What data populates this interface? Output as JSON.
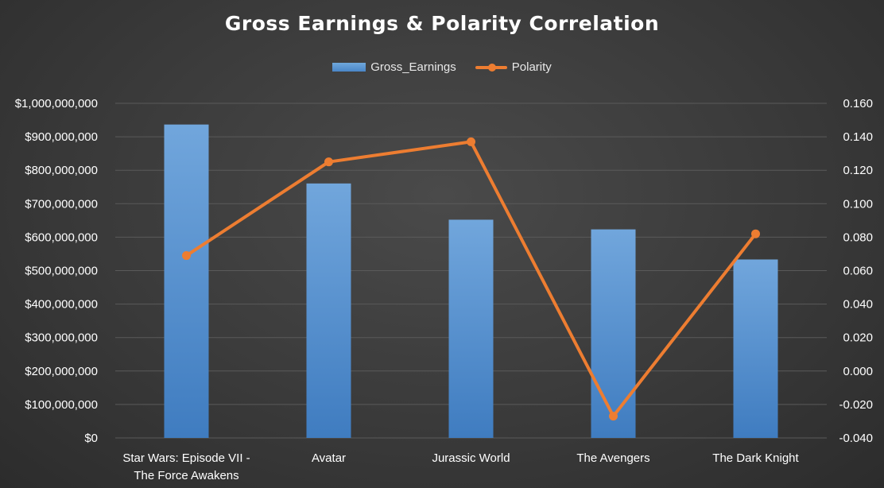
{
  "chart_data": {
    "type": "bar",
    "title": "Gross Earnings & Polarity Correlation",
    "categories": [
      [
        "Star Wars: Episode VII -",
        "The Force Awakens"
      ],
      [
        "Avatar"
      ],
      [
        "Jurassic World"
      ],
      [
        "The Avengers"
      ],
      [
        "The Dark Knight"
      ]
    ],
    "series": [
      {
        "name": "Gross_Earnings",
        "type": "bar",
        "axis": "left",
        "color": "#5b9bd5",
        "values": [
          936662225,
          760505847,
          652177271,
          623279547,
          533316061
        ]
      },
      {
        "name": "Polarity",
        "type": "line",
        "axis": "right",
        "color": "#ed7d31",
        "values": [
          0.069,
          0.125,
          0.137,
          -0.027,
          0.082
        ]
      }
    ],
    "y_left": {
      "ylim": [
        0,
        1000000000
      ],
      "step": 100000000,
      "tick_labels": [
        "$0",
        "$100,000,000",
        "$200,000,000",
        "$300,000,000",
        "$400,000,000",
        "$500,000,000",
        "$600,000,000",
        "$700,000,000",
        "$800,000,000",
        "$900,000,000",
        "$1,000,000,000"
      ]
    },
    "y_right": {
      "ylim": [
        -0.04,
        0.16
      ],
      "step": 0.02,
      "tick_labels": [
        "-0.040",
        "-0.020",
        "0.000",
        "0.020",
        "0.040",
        "0.060",
        "0.080",
        "0.100",
        "0.120",
        "0.140",
        "0.160"
      ]
    },
    "grid": true,
    "legend": "top-center"
  }
}
